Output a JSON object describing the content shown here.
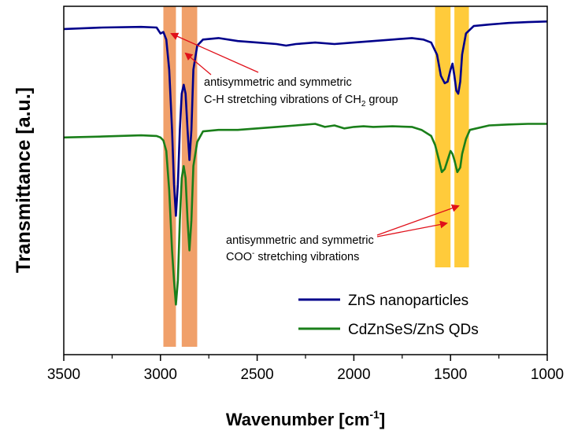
{
  "chart_data": {
    "type": "line",
    "xlabel": "Wavenumber [cm",
    "xlabel_sup": "-1",
    "xlabel_end": "]",
    "ylabel": "Transmittance [a.u.]",
    "xlim": [
      3500,
      1000
    ],
    "x_reversed": true,
    "xticks": [
      3500,
      3000,
      2500,
      2000,
      1500,
      1000
    ],
    "xtick_labels": [
      "3500",
      "3000",
      "2500",
      "2000",
      "1500",
      "1000"
    ],
    "y_ticks_shown": false,
    "ylim": [
      0,
      1
    ],
    "grid": false,
    "legend_position": "bottom-right",
    "highlight_bands": [
      {
        "x0": 2985,
        "x1": 2920,
        "color": "#F0A06A"
      },
      {
        "x0": 2890,
        "x1": 2810,
        "color": "#F0A06A"
      },
      {
        "x0": 1580,
        "x1": 1500,
        "color": "#FFCB3B"
      },
      {
        "x0": 1480,
        "x1": 1405,
        "color": "#FFCB3B"
      }
    ],
    "series": [
      {
        "name": "ZnS nanoparticles",
        "color": "#00008B",
        "x": [
          3500,
          3300,
          3100,
          3020,
          3000,
          2985,
          2970,
          2955,
          2940,
          2930,
          2920,
          2910,
          2900,
          2890,
          2880,
          2870,
          2860,
          2850,
          2840,
          2830,
          2810,
          2780,
          2700,
          2600,
          2500,
          2400,
          2350,
          2300,
          2200,
          2100,
          2000,
          1900,
          1800,
          1700,
          1640,
          1600,
          1570,
          1550,
          1530,
          1515,
          1500,
          1490,
          1480,
          1470,
          1460,
          1450,
          1440,
          1420,
          1380,
          1300,
          1200,
          1100,
          1000
        ],
        "y": [
          0.935,
          0.94,
          0.942,
          0.94,
          0.92,
          0.925,
          0.9,
          0.8,
          0.6,
          0.42,
          0.315,
          0.42,
          0.6,
          0.72,
          0.75,
          0.72,
          0.6,
          0.5,
          0.6,
          0.8,
          0.88,
          0.9,
          0.905,
          0.895,
          0.89,
          0.885,
          0.88,
          0.885,
          0.89,
          0.885,
          0.89,
          0.895,
          0.9,
          0.905,
          0.9,
          0.89,
          0.85,
          0.78,
          0.755,
          0.76,
          0.8,
          0.82,
          0.78,
          0.73,
          0.72,
          0.76,
          0.85,
          0.92,
          0.945,
          0.95,
          0.955,
          0.958,
          0.96
        ]
      },
      {
        "name": "CdZnSeS/ZnS QDs",
        "color": "#1A7F1A",
        "x": [
          3500,
          3300,
          3100,
          3020,
          3000,
          2985,
          2970,
          2955,
          2940,
          2930,
          2920,
          2910,
          2900,
          2890,
          2880,
          2870,
          2860,
          2850,
          2840,
          2830,
          2810,
          2780,
          2700,
          2600,
          2500,
          2400,
          2300,
          2200,
          2150,
          2100,
          2050,
          2000,
          1950,
          1900,
          1800,
          1700,
          1650,
          1600,
          1580,
          1560,
          1545,
          1530,
          1510,
          1500,
          1490,
          1480,
          1465,
          1450,
          1440,
          1420,
          1400,
          1300,
          1200,
          1100,
          1000
        ],
        "y": [
          0.575,
          0.578,
          0.582,
          0.58,
          0.575,
          0.565,
          0.53,
          0.4,
          0.2,
          0.1,
          0.02,
          0.1,
          0.3,
          0.44,
          0.48,
          0.44,
          0.3,
          0.2,
          0.3,
          0.48,
          0.56,
          0.595,
          0.6,
          0.6,
          0.605,
          0.61,
          0.615,
          0.62,
          0.61,
          0.615,
          0.605,
          0.61,
          0.612,
          0.61,
          0.612,
          0.61,
          0.6,
          0.58,
          0.55,
          0.5,
          0.46,
          0.47,
          0.51,
          0.53,
          0.52,
          0.5,
          0.46,
          0.475,
          0.52,
          0.57,
          0.6,
          0.615,
          0.618,
          0.62,
          0.62
        ]
      }
    ],
    "annotations": [
      {
        "text": "antisymmetric and symmetric"
      },
      {
        "text_before": "C-H stretching vibrations of CH",
        "sub": "2",
        "text_after": " group"
      },
      {
        "text": "antisymmetric and symmetric"
      },
      {
        "text_before": "COO",
        "sup": "-",
        "text_after": " stretching vibrations"
      }
    ],
    "arrow_color": "#E0101A"
  }
}
